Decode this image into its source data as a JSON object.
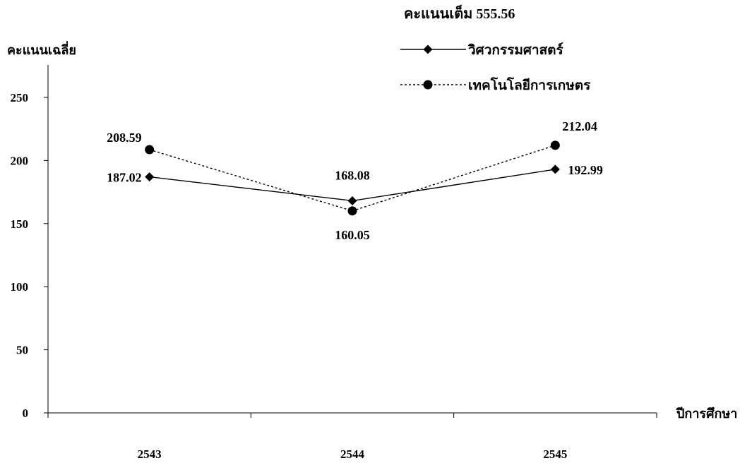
{
  "chart_data": {
    "type": "line",
    "title": "คะแนนเต็ม  555.56",
    "ylabel": "คะแนนเฉลี่ย",
    "xlabel": "ปีการศึกษา",
    "categories": [
      "2543",
      "2544",
      "2545"
    ],
    "ylim": [
      0,
      250
    ],
    "yticks": [
      0,
      50,
      100,
      150,
      200,
      250
    ],
    "grid": false,
    "legend_position": "top-right",
    "series": [
      {
        "name": "วิศวกรรมศาสตร์",
        "values": [
          187.02,
          168.08,
          192.99
        ],
        "labels": [
          "187.02",
          "168.08",
          "192.99"
        ],
        "line_style": "solid",
        "marker": "diamond",
        "color": "#000000"
      },
      {
        "name": "เทคโนโลยีการเกษตร",
        "values": [
          208.59,
          160.05,
          212.04
        ],
        "labels": [
          "208.59",
          "160.05",
          "212.04"
        ],
        "line_style": "dotted",
        "marker": "circle",
        "color": "#000000"
      }
    ]
  }
}
